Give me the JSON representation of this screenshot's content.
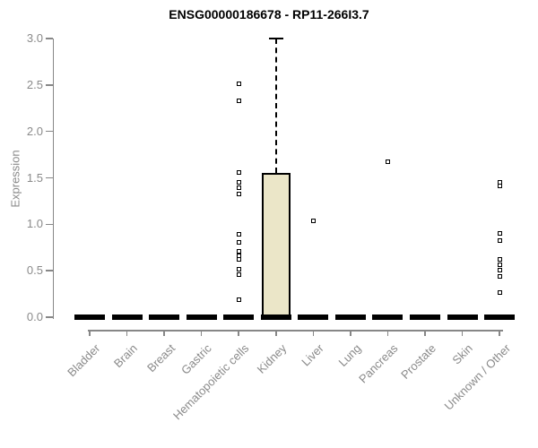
{
  "chart_data": {
    "type": "boxplot",
    "title": "ENSG00000186678 - RP11-266I3.7",
    "ylabel": "Expression",
    "xlabel": "",
    "ylim": [
      0.0,
      3.0
    ],
    "yticks": [
      0.0,
      0.5,
      1.0,
      1.5,
      2.0,
      2.5,
      3.0
    ],
    "grid": false,
    "legend": false,
    "categories": [
      "Bladder",
      "Brain",
      "Breast",
      "Gastric",
      "Hematopoietic cells",
      "Kidney",
      "Liver",
      "Lung",
      "Pancreas",
      "Prostate",
      "Skin",
      "Unknown / Other"
    ],
    "boxes": [
      {
        "category": "Bladder",
        "median": 0,
        "q1": 0,
        "q3": 0,
        "whisker_low": 0,
        "whisker_high": 0,
        "outliers": []
      },
      {
        "category": "Brain",
        "median": 0,
        "q1": 0,
        "q3": 0,
        "whisker_low": 0,
        "whisker_high": 0,
        "outliers": []
      },
      {
        "category": "Breast",
        "median": 0,
        "q1": 0,
        "q3": 0,
        "whisker_low": 0,
        "whisker_high": 0,
        "outliers": []
      },
      {
        "category": "Gastric",
        "median": 0,
        "q1": 0,
        "q3": 0,
        "whisker_low": 0,
        "whisker_high": 0,
        "outliers": []
      },
      {
        "category": "Hematopoietic cells",
        "median": 0,
        "q1": 0,
        "q3": 0,
        "whisker_low": 0,
        "whisker_high": 0,
        "outliers": [
          2.51,
          2.33,
          1.56,
          1.45,
          1.39,
          1.33,
          0.89,
          0.81,
          0.71,
          0.66,
          0.62,
          0.52,
          0.46,
          0.19
        ]
      },
      {
        "category": "Kidney",
        "median": 0,
        "q1": 0,
        "q3": 1.55,
        "whisker_low": 0,
        "whisker_high": 3.0,
        "outliers": []
      },
      {
        "category": "Liver",
        "median": 0,
        "q1": 0,
        "q3": 0,
        "whisker_low": 0,
        "whisker_high": 0,
        "outliers": [
          1.04
        ]
      },
      {
        "category": "Lung",
        "median": 0,
        "q1": 0,
        "q3": 0,
        "whisker_low": 0,
        "whisker_high": 0,
        "outliers": []
      },
      {
        "category": "Pancreas",
        "median": 0,
        "q1": 0,
        "q3": 0,
        "whisker_low": 0,
        "whisker_high": 0,
        "outliers": [
          1.67
        ]
      },
      {
        "category": "Prostate",
        "median": 0,
        "q1": 0,
        "q3": 0,
        "whisker_low": 0,
        "whisker_high": 0,
        "outliers": []
      },
      {
        "category": "Skin",
        "median": 0,
        "q1": 0,
        "q3": 0,
        "whisker_low": 0,
        "whisker_high": 0,
        "outliers": []
      },
      {
        "category": "Unknown / Other",
        "median": 0,
        "q1": 0,
        "q3": 0,
        "whisker_low": 0,
        "whisker_high": 0,
        "outliers": [
          1.45,
          1.41,
          0.9,
          0.82,
          0.62,
          0.56,
          0.51,
          0.44,
          0.27
        ]
      }
    ],
    "colors": {
      "box_fill": "#EBE6C8",
      "box_border": "#000000",
      "median": "#000000",
      "point": "#000000",
      "axis": "#878787",
      "tick_label": "#8a8a8a",
      "title": "#000000",
      "background": "#ffffff"
    }
  }
}
